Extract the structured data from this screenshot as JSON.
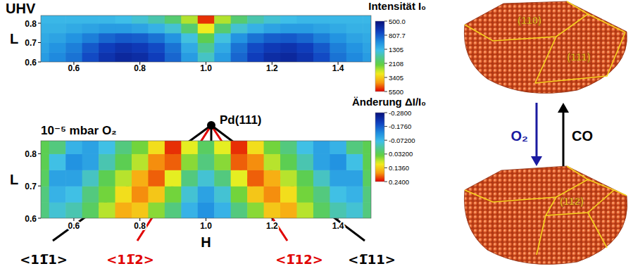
{
  "chart_data": [
    {
      "type": "heatmap",
      "title": "UHV",
      "y_label": "L",
      "x": [
        0.5,
        0.55,
        0.6,
        0.65,
        0.7,
        0.75,
        0.8,
        0.85,
        0.9,
        0.95,
        1.0,
        1.05,
        1.1,
        1.15,
        1.2,
        1.25,
        1.3,
        1.35,
        1.4,
        1.45,
        1.5
      ],
      "y": [
        0.625,
        0.675,
        0.725,
        0.775,
        0.825
      ],
      "cells": [
        [
          1100,
          1000,
          900,
          750,
          650,
          600,
          620,
          700,
          850,
          1100,
          1500,
          1100,
          850,
          700,
          620,
          600,
          650,
          750,
          900,
          1000,
          1100
        ],
        [
          1150,
          1050,
          950,
          800,
          700,
          650,
          680,
          750,
          900,
          1200,
          1700,
          1200,
          900,
          750,
          680,
          650,
          700,
          800,
          950,
          1050,
          1150
        ],
        [
          1200,
          1150,
          1050,
          950,
          850,
          800,
          820,
          900,
          1050,
          1400,
          2100,
          1400,
          1050,
          900,
          820,
          800,
          850,
          950,
          1050,
          1150,
          1200
        ],
        [
          1250,
          1250,
          1200,
          1150,
          1100,
          1100,
          1150,
          1250,
          1450,
          1900,
          3000,
          1900,
          1450,
          1250,
          1150,
          1100,
          1100,
          1150,
          1200,
          1250,
          1250
        ],
        [
          1300,
          1300,
          1300,
          1300,
          1300,
          1350,
          1450,
          1600,
          1900,
          2600,
          5000,
          2600,
          1900,
          1600,
          1450,
          1350,
          1300,
          1300,
          1300,
          1300,
          1300
        ]
      ],
      "xlim": [
        0.5,
        1.5
      ],
      "ylim": [
        0.6,
        0.84
      ],
      "xticks": [
        0.6,
        0.8,
        {
          "value": 1.0,
          "label": "1.0"
        },
        1.2,
        1.4
      ],
      "yticks": [
        0.6,
        0.7,
        0.8
      ],
      "colorbar": {
        "title": "Intensität I₀",
        "range": [
          500,
          5500
        ],
        "log": true,
        "ticks": [
          {
            "value": 500,
            "label": "500.0"
          },
          807.7,
          1305,
          2108,
          3405,
          5500
        ]
      }
    },
    {
      "type": "heatmap",
      "title": "10⁻⁵ mbar O₂",
      "x_label": "H",
      "y_label": "L",
      "x": [
        0.5,
        0.55,
        0.6,
        0.65,
        0.7,
        0.75,
        0.8,
        0.85,
        0.9,
        0.95,
        1.0,
        1.05,
        1.1,
        1.15,
        1.2,
        1.25,
        1.3,
        1.35,
        1.4,
        1.45,
        1.5
      ],
      "y": [
        0.625,
        0.675,
        0.725,
        0.775,
        0.825
      ],
      "cells": [
        [
          0.0,
          -0.05,
          -0.03,
          0.02,
          0.08,
          0.16,
          0.14,
          0.06,
          0.0,
          -0.08,
          -0.12,
          -0.08,
          0.0,
          0.06,
          0.14,
          0.16,
          0.08,
          0.02,
          -0.03,
          -0.05,
          0.0
        ],
        [
          0.0,
          -0.08,
          -0.06,
          0.0,
          0.05,
          0.12,
          0.18,
          0.14,
          0.05,
          -0.05,
          -0.1,
          -0.05,
          0.05,
          0.14,
          0.18,
          0.12,
          0.05,
          0.0,
          -0.06,
          -0.08,
          0.0
        ],
        [
          0.02,
          -0.1,
          -0.1,
          -0.04,
          0.03,
          0.08,
          0.16,
          0.2,
          0.1,
          0.0,
          -0.05,
          0.0,
          0.1,
          0.2,
          0.16,
          0.08,
          0.03,
          -0.04,
          -0.1,
          -0.1,
          0.02
        ],
        [
          0.03,
          -0.06,
          -0.12,
          -0.1,
          -0.03,
          0.03,
          0.08,
          0.18,
          0.2,
          0.06,
          0.0,
          0.06,
          0.2,
          0.18,
          0.08,
          0.03,
          -0.03,
          -0.1,
          -0.12,
          -0.06,
          0.03
        ],
        [
          0.03,
          0.0,
          -0.08,
          -0.1,
          -0.06,
          0.0,
          0.05,
          0.12,
          0.22,
          0.1,
          0.02,
          0.1,
          0.22,
          0.12,
          0.05,
          0.0,
          -0.06,
          -0.1,
          -0.08,
          0.0,
          0.03
        ]
      ],
      "xlim": [
        0.5,
        1.5
      ],
      "ylim": [
        0.6,
        0.84
      ],
      "xticks": [
        0.6,
        0.8,
        {
          "value": 1.0,
          "label": "1.0"
        },
        1.2,
        1.4
      ],
      "yticks": [
        0.6,
        0.7,
        0.8
      ],
      "colorbar": {
        "title": "Änderung ΔI/I₀",
        "range": [
          -0.28,
          0.24
        ],
        "log": false,
        "ticks": [
          {
            "value": -0.28,
            "label": "-0.2800"
          },
          {
            "value": -0.176,
            "label": "-0.1760"
          },
          {
            "value": -0.072,
            "label": "-0.07200"
          },
          {
            "value": 0.032,
            "label": "0.03200"
          },
          {
            "value": 0.136,
            "label": "0.1360"
          },
          {
            "value": 0.24,
            "label": "0.2400"
          }
        ]
      }
    }
  ],
  "diagram": {
    "center_label": "Pd(111)",
    "directions": [
      {
        "label": "<11̅1>",
        "color": "#000000"
      },
      {
        "label": "<11̅2>",
        "color": "#e00000"
      },
      {
        "label": "<1̅12>",
        "color": "#e00000"
      },
      {
        "label": "<1̅11>",
        "color": "#000000"
      }
    ],
    "particles": [
      {
        "facets": [
          "(110)",
          "(111)"
        ]
      },
      {
        "facets": [
          "(112)"
        ]
      }
    ],
    "arrows": [
      {
        "label": "O₂",
        "color": "#1a1aa0",
        "direction": "down"
      },
      {
        "label": "CO",
        "color": "#000000",
        "direction": "up"
      }
    ]
  }
}
